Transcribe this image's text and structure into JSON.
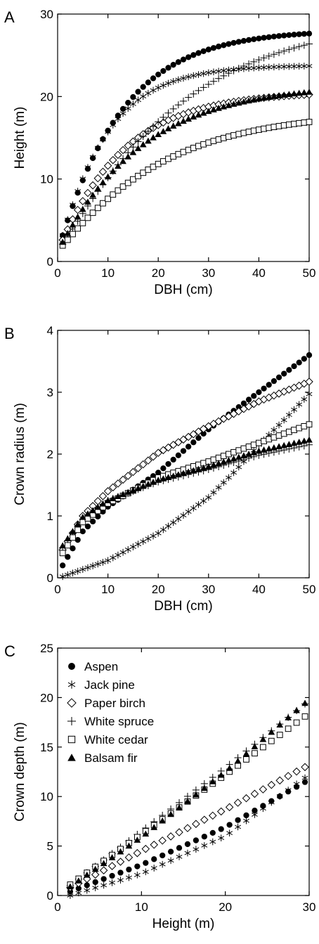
{
  "series_styles": {
    "aspen": {
      "marker": "filled-circle"
    },
    "jack_pine": {
      "marker": "asterisk"
    },
    "paper_birch": {
      "marker": "open-diamond"
    },
    "white_spruce": {
      "marker": "plus"
    },
    "white_cedar": {
      "marker": "open-square"
    },
    "balsam_fir": {
      "marker": "filled-triangle"
    }
  },
  "chart_data": [
    {
      "panel": "A",
      "type": "scatter",
      "xlabel": "DBH (cm)",
      "ylabel": "Height (m)",
      "xlim": [
        0,
        50
      ],
      "ylim": [
        0,
        30
      ],
      "x_ticks": [
        0,
        10,
        20,
        30,
        40,
        50
      ],
      "y_ticks": [
        0,
        10,
        20,
        30
      ],
      "legend": "none",
      "grid": false,
      "x_start": 1,
      "x_end": 50,
      "x_step": 1,
      "series": [
        {
          "key": "aspen",
          "model": {
            "form": "chapman",
            "a": 26.8,
            "b": 0.082,
            "c": 1.05,
            "offset": 1.3
          }
        },
        {
          "key": "jack_pine",
          "model": {
            "form": "chapman",
            "a": 22.5,
            "b": 0.11,
            "c": 1.1,
            "offset": 1.3
          }
        },
        {
          "key": "paper_birch",
          "model": {
            "form": "chapman",
            "a": 19.3,
            "b": 0.08,
            "c": 1.05,
            "offset": 1.3
          }
        },
        {
          "key": "white_spruce",
          "model": {
            "form": "chapman",
            "a": 28.5,
            "b": 0.045,
            "c": 1.15,
            "offset": 1.3
          }
        },
        {
          "key": "white_cedar",
          "model": {
            "form": "chapman",
            "a": 17.0,
            "b": 0.052,
            "c": 1.1,
            "offset": 1.3
          }
        },
        {
          "key": "balsam_fir",
          "model": {
            "form": "chapman",
            "a": 20.2,
            "b": 0.062,
            "c": 1.05,
            "offset": 1.3
          }
        }
      ]
    },
    {
      "panel": "B",
      "type": "scatter",
      "xlabel": "DBH (cm)",
      "ylabel": "Crown radius (m)",
      "xlim": [
        0,
        50
      ],
      "ylim": [
        0,
        4
      ],
      "x_ticks": [
        0,
        10,
        20,
        30,
        40,
        50
      ],
      "y_ticks": [
        0,
        1,
        2,
        3,
        4
      ],
      "legend": "none",
      "grid": false,
      "x_start": 1,
      "x_end": 50,
      "x_step": 1,
      "series": [
        {
          "key": "aspen",
          "model": {
            "form": "interp",
            "knots": [
              [
                1,
                0.2
              ],
              [
                5,
                0.75
              ],
              [
                10,
                1.15
              ],
              [
                20,
                1.7
              ],
              [
                30,
                2.4
              ],
              [
                40,
                3.0
              ],
              [
                50,
                3.6
              ]
            ]
          }
        },
        {
          "key": "jack_pine",
          "model": {
            "form": "interp",
            "knots": [
              [
                1,
                0.02
              ],
              [
                10,
                0.28
              ],
              [
                20,
                0.72
              ],
              [
                30,
                1.3
              ],
              [
                35,
                1.7
              ],
              [
                40,
                2.15
              ],
              [
                45,
                2.55
              ],
              [
                50,
                2.97
              ]
            ]
          }
        },
        {
          "key": "paper_birch",
          "model": {
            "form": "interp",
            "knots": [
              [
                1,
                0.45
              ],
              [
                5,
                1.0
              ],
              [
                10,
                1.4
              ],
              [
                20,
                2.02
              ],
              [
                30,
                2.45
              ],
              [
                40,
                2.85
              ],
              [
                50,
                3.17
              ]
            ]
          }
        },
        {
          "key": "white_spruce",
          "model": {
            "form": "interp",
            "knots": [
              [
                2,
                0.6
              ],
              [
                5,
                0.95
              ],
              [
                10,
                1.25
              ],
              [
                20,
                1.55
              ],
              [
                30,
                1.75
              ],
              [
                40,
                1.98
              ],
              [
                50,
                2.15
              ]
            ]
          }
        },
        {
          "key": "white_cedar",
          "model": {
            "form": "interp",
            "knots": [
              [
                1,
                0.4
              ],
              [
                5,
                0.9
              ],
              [
                10,
                1.2
              ],
              [
                20,
                1.62
              ],
              [
                30,
                1.88
              ],
              [
                40,
                2.18
              ],
              [
                50,
                2.48
              ]
            ]
          }
        },
        {
          "key": "balsam_fir",
          "model": {
            "form": "interp",
            "knots": [
              [
                1,
                0.52
              ],
              [
                5,
                0.98
              ],
              [
                10,
                1.25
              ],
              [
                20,
                1.58
              ],
              [
                30,
                1.8
              ],
              [
                40,
                2.05
              ],
              [
                50,
                2.23
              ]
            ]
          }
        }
      ]
    },
    {
      "panel": "C",
      "type": "scatter",
      "xlabel": "Height (m)",
      "ylabel": "Crown depth (m)",
      "xlim": [
        0,
        30
      ],
      "ylim": [
        0,
        25
      ],
      "x_ticks": [
        0,
        10,
        20,
        30
      ],
      "y_ticks": [
        0,
        5,
        10,
        15,
        20,
        25
      ],
      "legend": "top-left",
      "grid": false,
      "x_start": 1.5,
      "x_end": 30,
      "x_step": 1,
      "series": [
        {
          "key": "aspen",
          "name": "Aspen",
          "model": {
            "form": "interp",
            "knots": [
              [
                1.5,
                0.4
              ],
              [
                10,
                3.1
              ],
              [
                20,
                6.9
              ],
              [
                30,
                11.7
              ]
            ]
          }
        },
        {
          "key": "jack_pine",
          "name": "Jack pine",
          "model": {
            "form": "interp",
            "knots": [
              [
                1.5,
                0.0
              ],
              [
                10,
                2.2
              ],
              [
                20,
                6.0
              ],
              [
                30,
                12.2
              ]
            ]
          }
        },
        {
          "key": "paper_birch",
          "name": "Paper birch",
          "model": {
            "form": "interp",
            "knots": [
              [
                1.5,
                0.8
              ],
              [
                10,
                4.5
              ],
              [
                20,
                8.7
              ],
              [
                30,
                13.2
              ]
            ]
          }
        },
        {
          "key": "white_spruce",
          "name": "White spruce",
          "model": {
            "form": "interp",
            "knots": [
              [
                1.5,
                1.0
              ],
              [
                10,
                6.5
              ],
              [
                20,
                12.9
              ],
              [
                30,
                19.7
              ]
            ]
          }
        },
        {
          "key": "white_cedar",
          "name": "White cedar",
          "model": {
            "form": "interp",
            "knots": [
              [
                1.5,
                1.1
              ],
              [
                10,
                6.2
              ],
              [
                20,
                12.2
              ],
              [
                30,
                18.4
              ]
            ]
          }
        },
        {
          "key": "balsam_fir",
          "name": "Balsam fir",
          "model": {
            "form": "interp",
            "knots": [
              [
                1.5,
                0.9
              ],
              [
                10,
                5.9
              ],
              [
                20,
                12.5
              ],
              [
                30,
                19.8
              ]
            ]
          }
        }
      ]
    }
  ]
}
